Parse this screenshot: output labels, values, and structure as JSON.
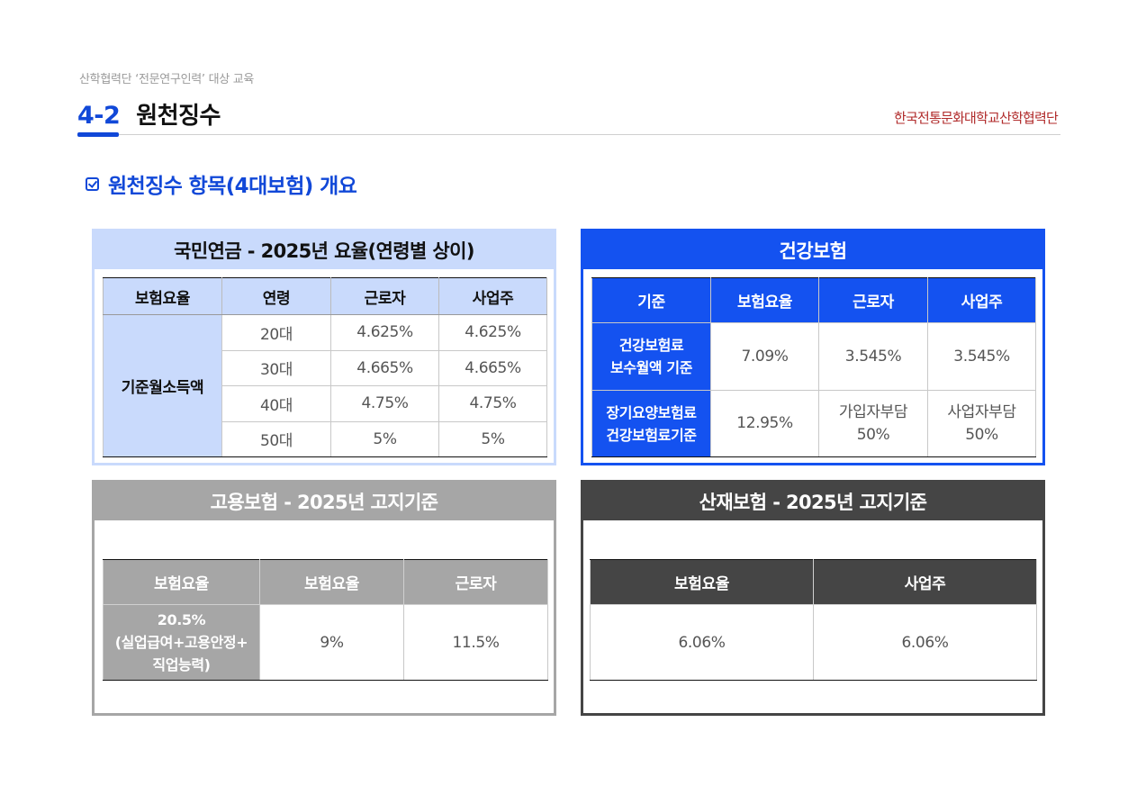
{
  "header": {
    "subtitle": "산학협력단 ‘전문연구인력’ 대상 교육",
    "section_number": "4-2",
    "section_title": "원천징수",
    "brand": "한국전통문화대학교산학협력단"
  },
  "topic": "원천징수 항목(4대보험) 개요",
  "colors": {
    "accent": "#1148d8",
    "pension": "#c9dafc",
    "health": "#1452f0",
    "employment": "#a6a6a6",
    "industrial": "#454545"
  },
  "pension": {
    "title": "국민연금 - 2025년 요율(연령별 상이)",
    "headers": [
      "보험요율",
      "연령",
      "근로자",
      "사업주"
    ],
    "row_header": "기준월소득액",
    "rows": [
      [
        "20대",
        "4.625%",
        "4.625%"
      ],
      [
        "30대",
        "4.665%",
        "4.665%"
      ],
      [
        "40대",
        "4.75%",
        "4.75%"
      ],
      [
        "50대",
        "5%",
        "5%"
      ]
    ]
  },
  "health": {
    "title": "건강보험",
    "headers": [
      "기준",
      "보험요율",
      "근로자",
      "사업주"
    ],
    "rows": [
      {
        "label_1": "건강보험료",
        "label_2": "보수월액 기준",
        "values": [
          "7.09%",
          "3.545%",
          "3.545%"
        ]
      },
      {
        "label_1": "장기요양보험료",
        "label_2": "건강보험료기준",
        "rate": "12.95%",
        "worker_1": "가입자부담",
        "worker_2": "50%",
        "employer_1": "사업자부담",
        "employer_2": "50%"
      }
    ]
  },
  "employment": {
    "title": "고용보험 - 2025년 고지기준",
    "headers": [
      "보험요율",
      "보험요율",
      "근로자"
    ],
    "row_label_1": "20.5%",
    "row_label_2": "(실업급여+고용안정+",
    "row_label_3": "직업능력)",
    "values": [
      "9%",
      "11.5%"
    ]
  },
  "industrial": {
    "title": "산재보험 - 2025년 고지기준",
    "headers": [
      "보험요율",
      "사업주"
    ],
    "values": [
      "6.06%",
      "6.06%"
    ]
  }
}
